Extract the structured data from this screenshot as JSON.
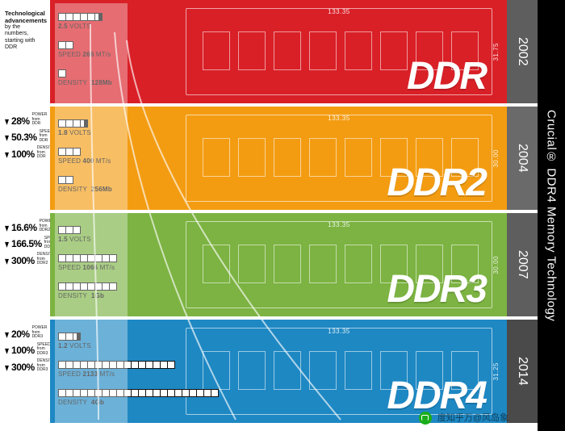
{
  "title": "Crucial® DDR4 Memory Technology",
  "left_header": {
    "line1": "Technological advancements",
    "line2": "by the numbers,",
    "line3": "starting with DDR"
  },
  "modules": [
    {
      "name": "DDR",
      "year": "2002",
      "color": "#d92027",
      "year_color": "#5e5e5e",
      "width_mm": "133.35",
      "height_mm": "31.75",
      "volts": {
        "boxes": 5,
        "half": true,
        "value": "2.5",
        "unit": "VOLTS"
      },
      "speed": {
        "boxes": 2,
        "value": "266",
        "unit": "MT/s"
      },
      "density": {
        "boxes": 1,
        "value": "128Mb"
      }
    },
    {
      "name": "DDR2",
      "year": "2004",
      "color": "#f39c12",
      "year_color": "#6a6a6a",
      "width_mm": "133.35",
      "height_mm": "30.00",
      "volts": {
        "boxes": 3,
        "half": true,
        "value": "1.8",
        "unit": "VOLTS"
      },
      "speed": {
        "boxes": 3,
        "value": "400",
        "unit": "MT/s"
      },
      "density": {
        "boxes": 2,
        "value": "256Mb"
      },
      "adv": [
        {
          "pct": "28%",
          "sub1": "POWER",
          "sub2": "from DDR"
        },
        {
          "pct": "50.3%",
          "sub1": "SPEED",
          "sub2": "from DDR"
        },
        {
          "pct": "100%",
          "sub1": "DENSITY",
          "sub2": "from DDR"
        }
      ]
    },
    {
      "name": "DDR3",
      "year": "2007",
      "color": "#7cb342",
      "year_color": "#5e5e5e",
      "width_mm": "133.35",
      "height_mm": "30.00",
      "volts": {
        "boxes": 3,
        "value": "1.5",
        "unit": "VOLTS"
      },
      "speed": {
        "boxes": 8,
        "value": "1066",
        "unit": "MT/s"
      },
      "density": {
        "boxes": 8,
        "value": "1Gb"
      },
      "adv": [
        {
          "pct": "16.6%",
          "sub1": "POWER",
          "sub2": "from DDR2"
        },
        {
          "pct": "166.5%",
          "sub1": "SPEED",
          "sub2": "from DDR2"
        },
        {
          "pct": "300%",
          "sub1": "DENSITY",
          "sub2": "from DDR2"
        }
      ]
    },
    {
      "name": "DDR4",
      "year": "2014",
      "color": "#1e88c3",
      "year_color": "#4a4a4a",
      "width_mm": "133.35",
      "height_mm": "31.25",
      "volts": {
        "boxes": 2,
        "half": true,
        "value": "1.2",
        "unit": "VOLTS"
      },
      "speed": {
        "boxes": 16,
        "value": "2133",
        "unit": "MT/s"
      },
      "density": {
        "boxes": 32,
        "value": "4Gb"
      },
      "adv": [
        {
          "pct": "20%",
          "sub1": "POWER",
          "sub2": "from DDR3"
        },
        {
          "pct": "100%",
          "sub1": "SPEED",
          "sub2": "from DDR3"
        },
        {
          "pct": "300%",
          "sub1": "DENSITY",
          "sub2": "from DDR3"
        }
      ]
    }
  ],
  "spec_labels": {
    "speed_prefix": "SPEED",
    "density_prefix": "DENSITY"
  },
  "curve_color": "rgba(255,255,255,0.65)",
  "curve_width": 2,
  "overlay_color": "rgba(255,255,255,0.35)",
  "module_gap": 4,
  "module_height": 128,
  "watermark": "度知乎万@风岛象"
}
